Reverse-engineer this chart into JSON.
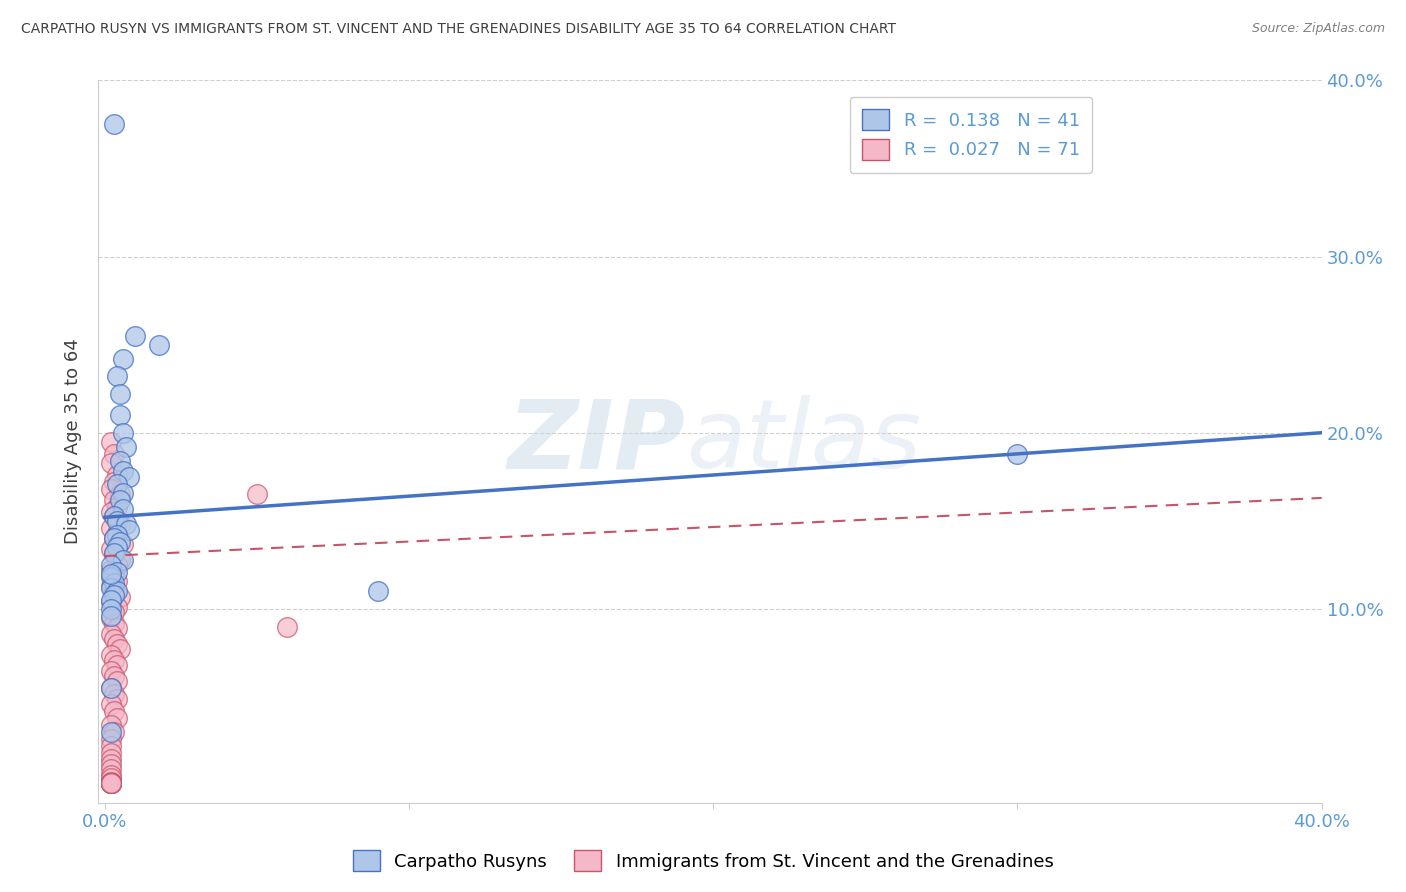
{
  "title": "CARPATHO RUSYN VS IMMIGRANTS FROM ST. VINCENT AND THE GRENADINES DISABILITY AGE 35 TO 64 CORRELATION CHART",
  "source": "Source: ZipAtlas.com",
  "ylabel": "Disability Age 35 to 64",
  "xlim": [
    -0.002,
    0.4
  ],
  "ylim": [
    -0.01,
    0.4
  ],
  "xticks": [
    0.0,
    0.1,
    0.2,
    0.3,
    0.4
  ],
  "ytick_positions": [
    0.1,
    0.2,
    0.3,
    0.4
  ],
  "ytick_labels": [
    "10.0%",
    "20.0%",
    "30.0%",
    "40.0%"
  ],
  "watermark_zip": "ZIP",
  "watermark_atlas": "atlas",
  "legend_entries": [
    {
      "label": "R =  0.138   N = 41",
      "color": "#aec6e8"
    },
    {
      "label": "R =  0.027   N = 71",
      "color": "#f4b8c8"
    }
  ],
  "legend_labels_bottom": [
    "Carpatho Rusyns",
    "Immigrants from St. Vincent and the Grenadines"
  ],
  "blue_scatter": [
    [
      0.003,
      0.375
    ],
    [
      0.01,
      0.255
    ],
    [
      0.018,
      0.25
    ],
    [
      0.006,
      0.242
    ],
    [
      0.004,
      0.232
    ],
    [
      0.005,
      0.222
    ],
    [
      0.005,
      0.21
    ],
    [
      0.006,
      0.2
    ],
    [
      0.007,
      0.192
    ],
    [
      0.005,
      0.184
    ],
    [
      0.006,
      0.178
    ],
    [
      0.008,
      0.175
    ],
    [
      0.004,
      0.171
    ],
    [
      0.006,
      0.166
    ],
    [
      0.005,
      0.162
    ],
    [
      0.006,
      0.157
    ],
    [
      0.003,
      0.153
    ],
    [
      0.004,
      0.15
    ],
    [
      0.007,
      0.148
    ],
    [
      0.008,
      0.145
    ],
    [
      0.004,
      0.142
    ],
    [
      0.003,
      0.14
    ],
    [
      0.005,
      0.138
    ],
    [
      0.004,
      0.135
    ],
    [
      0.003,
      0.132
    ],
    [
      0.006,
      0.128
    ],
    [
      0.002,
      0.125
    ],
    [
      0.004,
      0.121
    ],
    [
      0.002,
      0.118
    ],
    [
      0.003,
      0.115
    ],
    [
      0.002,
      0.112
    ],
    [
      0.004,
      0.11
    ],
    [
      0.003,
      0.108
    ],
    [
      0.002,
      0.105
    ],
    [
      0.002,
      0.1
    ],
    [
      0.002,
      0.096
    ],
    [
      0.002,
      0.12
    ],
    [
      0.09,
      0.11
    ],
    [
      0.3,
      0.188
    ],
    [
      0.002,
      0.055
    ],
    [
      0.002,
      0.03
    ]
  ],
  "pink_scatter": [
    [
      0.002,
      0.195
    ],
    [
      0.003,
      0.188
    ],
    [
      0.002,
      0.183
    ],
    [
      0.004,
      0.176
    ],
    [
      0.003,
      0.172
    ],
    [
      0.002,
      0.168
    ],
    [
      0.005,
      0.165
    ],
    [
      0.003,
      0.162
    ],
    [
      0.004,
      0.158
    ],
    [
      0.002,
      0.155
    ],
    [
      0.003,
      0.152
    ],
    [
      0.005,
      0.148
    ],
    [
      0.002,
      0.146
    ],
    [
      0.004,
      0.143
    ],
    [
      0.003,
      0.14
    ],
    [
      0.006,
      0.137
    ],
    [
      0.002,
      0.134
    ],
    [
      0.003,
      0.131
    ],
    [
      0.005,
      0.128
    ],
    [
      0.004,
      0.125
    ],
    [
      0.002,
      0.122
    ],
    [
      0.003,
      0.119
    ],
    [
      0.004,
      0.116
    ],
    [
      0.002,
      0.113
    ],
    [
      0.003,
      0.11
    ],
    [
      0.005,
      0.107
    ],
    [
      0.002,
      0.104
    ],
    [
      0.004,
      0.101
    ],
    [
      0.003,
      0.098
    ],
    [
      0.002,
      0.095
    ],
    [
      0.003,
      0.092
    ],
    [
      0.004,
      0.089
    ],
    [
      0.002,
      0.086
    ],
    [
      0.003,
      0.083
    ],
    [
      0.004,
      0.08
    ],
    [
      0.005,
      0.077
    ],
    [
      0.002,
      0.074
    ],
    [
      0.003,
      0.071
    ],
    [
      0.004,
      0.068
    ],
    [
      0.002,
      0.065
    ],
    [
      0.003,
      0.062
    ],
    [
      0.004,
      0.059
    ],
    [
      0.002,
      0.055
    ],
    [
      0.003,
      0.052
    ],
    [
      0.004,
      0.049
    ],
    [
      0.002,
      0.046
    ],
    [
      0.003,
      0.042
    ],
    [
      0.004,
      0.038
    ],
    [
      0.002,
      0.034
    ],
    [
      0.003,
      0.03
    ],
    [
      0.002,
      0.026
    ],
    [
      0.05,
      0.165
    ],
    [
      0.06,
      0.09
    ],
    [
      0.002,
      0.022
    ],
    [
      0.002,
      0.018
    ],
    [
      0.002,
      0.015
    ],
    [
      0.002,
      0.012
    ],
    [
      0.002,
      0.009
    ],
    [
      0.002,
      0.006
    ],
    [
      0.002,
      0.004
    ],
    [
      0.002,
      0.002
    ],
    [
      0.002,
      0.001
    ],
    [
      0.002,
      0.001
    ],
    [
      0.002,
      0.001
    ],
    [
      0.002,
      0.001
    ],
    [
      0.002,
      0.001
    ],
    [
      0.002,
      0.001
    ],
    [
      0.002,
      0.001
    ],
    [
      0.002,
      0.001
    ],
    [
      0.002,
      0.001
    ],
    [
      0.002,
      0.001
    ]
  ],
  "blue_line": [
    [
      0.0,
      0.152
    ],
    [
      0.4,
      0.2
    ]
  ],
  "pink_line": [
    [
      0.0,
      0.13
    ],
    [
      0.4,
      0.163
    ]
  ],
  "blue_color": "#4472c4",
  "pink_color": "#c9546a",
  "blue_fill": "#aec6e8",
  "pink_fill": "#f4b8c8",
  "background_color": "#ffffff",
  "title_color": "#404040",
  "source_color": "#808080",
  "tick_color": "#5b9bd5",
  "ylabel_color": "#404040",
  "grid_color": "#d0d0d0"
}
